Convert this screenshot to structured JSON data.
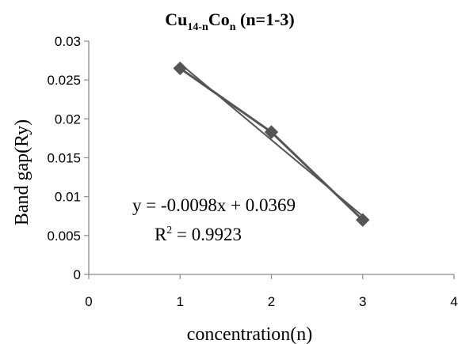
{
  "chart_data": {
    "type": "scatter",
    "title": {
      "base1": "Cu",
      "sub1": "14-n",
      "base2": "Co",
      "sub2": "n",
      "suffix": " (n=1-3)"
    },
    "xlabel": "concentration(n)",
    "ylabel": "Band gap(Ry)",
    "xlim": [
      0,
      4
    ],
    "ylim": [
      0,
      0.03
    ],
    "xticks": [
      0,
      1,
      2,
      3,
      4
    ],
    "xtick_labels": [
      "0",
      "1",
      "2",
      "3",
      "4"
    ],
    "yticks": [
      0,
      0.005,
      0.01,
      0.015,
      0.02,
      0.025,
      0.03
    ],
    "ytick_labels": [
      "0",
      "0.005",
      "0.01",
      "0.015",
      "0.02",
      "0.025",
      "0.03"
    ],
    "grid": false,
    "series": [
      {
        "x": [
          1,
          2,
          3
        ],
        "y": [
          0.0265,
          0.0183,
          0.007
        ],
        "marker": "diamond",
        "color": "#555555"
      }
    ],
    "trendline": {
      "slope": -0.0098,
      "intercept": 0.0369,
      "color": "#555555"
    },
    "annotations": {
      "equation": "y = -0.0098x + 0.0369",
      "r2_prefix": "R",
      "r2_sup": "2",
      "r2_value": " = 0.9923"
    }
  }
}
